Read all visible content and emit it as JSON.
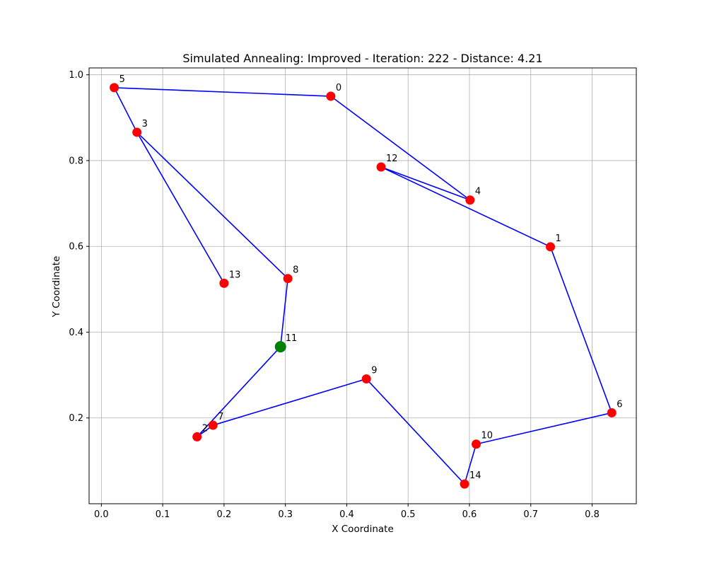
{
  "chart_data": {
    "type": "scatter",
    "title": "Simulated Annealing: Improved - Iteration: 222 - Distance: 4.21",
    "xlabel": "X Coordinate",
    "ylabel": "Y Coordinate",
    "xlim": [
      -0.02,
      0.872
    ],
    "ylim": [
      0.0,
      1.016
    ],
    "xticks": [
      "0.0",
      "0.1",
      "0.2",
      "0.3",
      "0.4",
      "0.5",
      "0.6",
      "0.7",
      "0.8"
    ],
    "yticks": [
      "0.2",
      "0.4",
      "0.6",
      "0.8",
      "1.0"
    ],
    "grid": true,
    "colors": {
      "route": "#0000ff",
      "city": "#ff0000",
      "start": "#008000"
    },
    "cities": [
      {
        "label": "0",
        "x": 0.374,
        "y": 0.95
      },
      {
        "label": "1",
        "x": 0.732,
        "y": 0.599
      },
      {
        "label": "2",
        "x": 0.156,
        "y": 0.156
      },
      {
        "label": "3",
        "x": 0.058,
        "y": 0.866
      },
      {
        "label": "4",
        "x": 0.601,
        "y": 0.708
      },
      {
        "label": "5",
        "x": 0.021,
        "y": 0.97
      },
      {
        "label": "6",
        "x": 0.832,
        "y": 0.212
      },
      {
        "label": "7",
        "x": 0.182,
        "y": 0.183
      },
      {
        "label": "8",
        "x": 0.304,
        "y": 0.525
      },
      {
        "label": "9",
        "x": 0.432,
        "y": 0.291
      },
      {
        "label": "10",
        "x": 0.611,
        "y": 0.139
      },
      {
        "label": "11",
        "x": 0.292,
        "y": 0.366
      },
      {
        "label": "12",
        "x": 0.456,
        "y": 0.785
      },
      {
        "label": "13",
        "x": 0.2,
        "y": 0.514
      },
      {
        "label": "14",
        "x": 0.592,
        "y": 0.046
      }
    ],
    "start_city": "11",
    "route": [
      "11",
      "8",
      "3",
      "13",
      "3",
      "5",
      "0",
      "4",
      "12",
      "1",
      "6",
      "10",
      "14",
      "9",
      "7",
      "2",
      "11"
    ]
  }
}
